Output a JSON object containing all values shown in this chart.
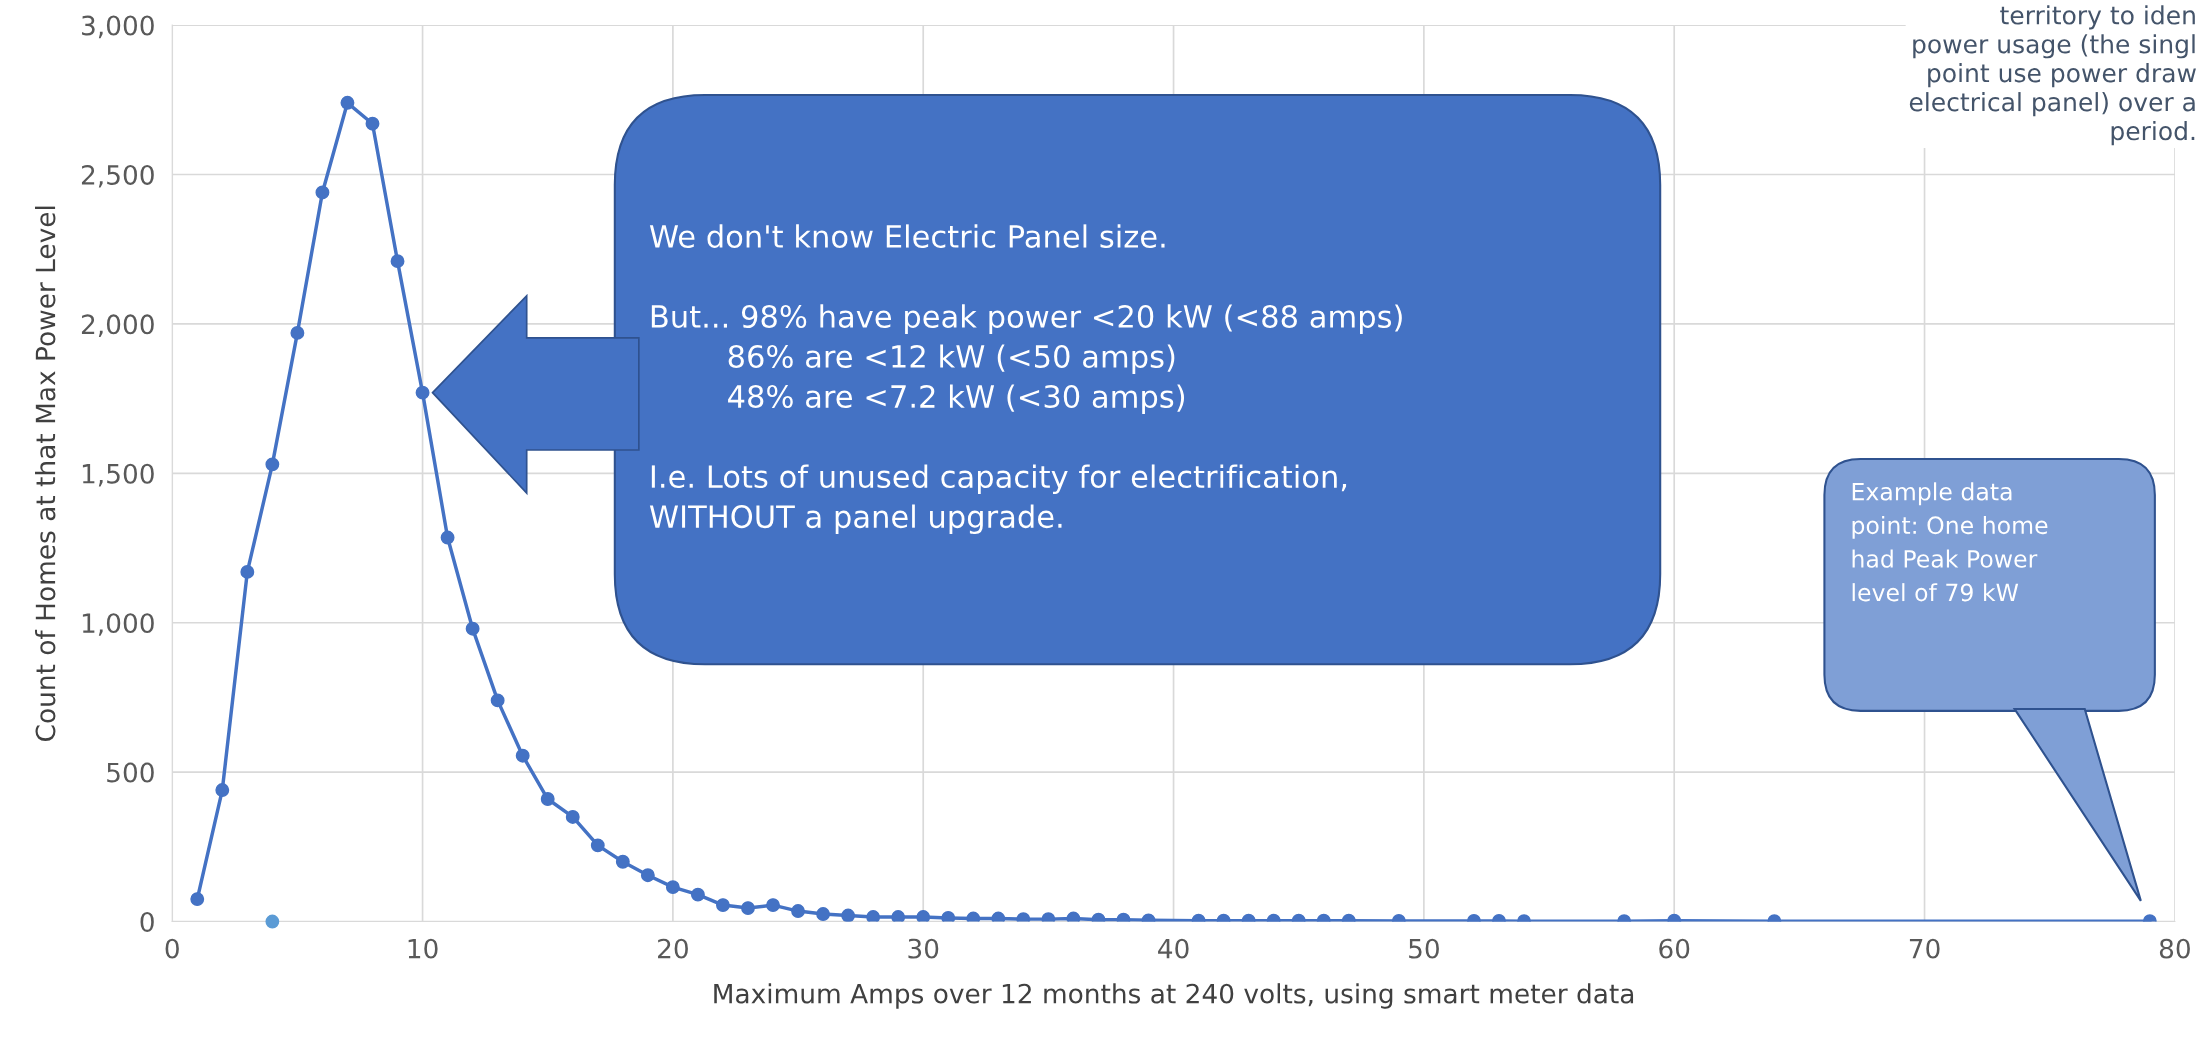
{
  "chart_data": {
    "type": "line",
    "xlabel": "Maximum Amps over 12 months at 240 volts, using smart meter data",
    "ylabel": "Count of Homes at that Max Power Level",
    "series": [
      {
        "color": "#4472c4",
        "x": [
          1,
          2,
          3,
          4,
          5,
          6,
          7,
          8,
          9,
          10,
          11,
          12,
          13,
          14,
          15,
          16,
          17,
          18,
          19,
          20,
          21,
          22,
          23,
          24,
          25,
          26,
          27,
          28,
          29,
          30,
          31,
          32,
          33,
          34,
          35,
          36,
          37,
          38,
          39,
          41,
          42,
          43,
          44,
          45,
          46,
          47,
          49,
          52,
          53,
          54,
          58,
          60,
          64,
          79
        ],
        "values": [
          75,
          440,
          1170,
          1530,
          1970,
          2440,
          2740,
          2670,
          2210,
          1770,
          1285,
          980,
          740,
          555,
          410,
          350,
          255,
          200,
          155,
          115,
          90,
          55,
          45,
          55,
          35,
          25,
          20,
          15,
          15,
          15,
          12,
          10,
          10,
          8,
          8,
          10,
          6,
          6,
          4,
          3,
          3,
          3,
          3,
          3,
          3,
          3,
          2,
          2,
          2,
          1,
          1,
          3,
          1,
          1
        ]
      },
      {
        "type": "scatter",
        "color": "#5b9bd5",
        "x": [
          4
        ],
        "values": [
          0
        ]
      }
    ],
    "marker": "circle",
    "xlim": [
      0,
      80
    ],
    "xticks": [
      0,
      10,
      20,
      30,
      40,
      50,
      60,
      70,
      80
    ],
    "ylim": [
      0,
      3000
    ],
    "yticks": [
      {
        "value": 0,
        "label": "0"
      },
      {
        "value": 500,
        "label": "500"
      },
      {
        "value": 1000,
        "label": "1,000"
      },
      {
        "value": 1500,
        "label": "1,500"
      },
      {
        "value": 2000,
        "label": "2,000"
      },
      {
        "value": 2500,
        "label": "2,500"
      },
      {
        "value": 3000,
        "label": "3,000"
      }
    ],
    "grid": true,
    "annotations": [
      "We don't know Electric Panel size.\n\nBut... 98% have peak power <20 kW (<88 amps)\n        86% are <12 kW (<50 amps)\n        48% are <7.2 kW (<30 amps)\n\nI.e. Lots of unused capacity for electrification,\nWITHOUT a panel upgrade.",
      "Example data\npoint: One home\nhad Peak Power\nlevel of 79 kW",
      "territory to iden\npower usage (the singl\npoint use power draw\nelectrical panel) over a\nperiod."
    ]
  }
}
